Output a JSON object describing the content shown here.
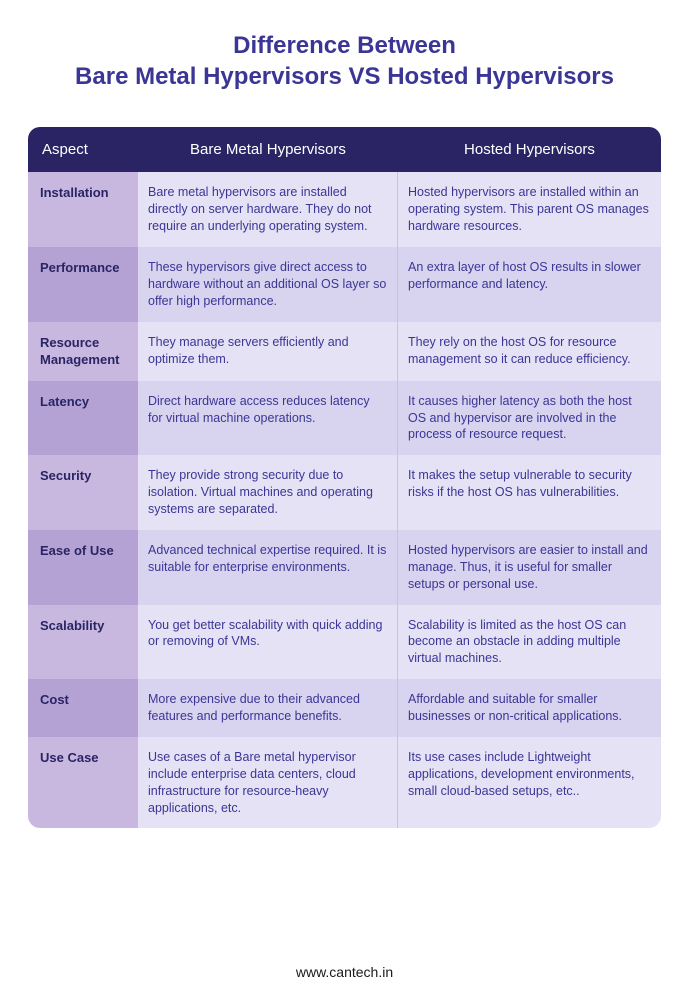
{
  "title_line1": "Difference Between",
  "title_line2": "Bare Metal Hypervisors VS Hosted Hypervisors",
  "columns": [
    "Aspect",
    "Bare Metal Hypervisors",
    "Hosted Hypervisors"
  ],
  "rows": [
    {
      "aspect": "Installation",
      "bare_metal": "Bare metal hypervisors are installed directly on server hardware. They do not require an underlying operating system.",
      "hosted": "Hosted hypervisors are installed within an operating system. This parent OS manages hardware resources."
    },
    {
      "aspect": "Performance",
      "bare_metal": "These hypervisors give direct access to hardware without an additional OS layer so offer high performance.",
      "hosted": "An extra layer of host OS results in slower performance and latency."
    },
    {
      "aspect": "Resource Management",
      "bare_metal": "They manage servers efficiently and optimize them.",
      "hosted": "They rely on the host OS for resource management so it can reduce efficiency."
    },
    {
      "aspect": "Latency",
      "bare_metal": "Direct hardware access reduces latency for virtual machine operations.",
      "hosted": "It causes higher latency as both the host OS and hypervisor are involved in the process of resource request."
    },
    {
      "aspect": "Security",
      "bare_metal": "They provide strong security due to isolation. Virtual machines and operating systems are separated.",
      "hosted": "It makes the setup vulnerable to security risks if the host OS has vulnerabilities."
    },
    {
      "aspect": "Ease of Use",
      "bare_metal": "Advanced technical expertise required. It is suitable for enterprise environments.",
      "hosted": "Hosted hypervisors are easier to install and manage. Thus, it is useful for smaller setups or personal use."
    },
    {
      "aspect": "Scalability",
      "bare_metal": "You get better scalability with quick adding or removing of VMs.",
      "hosted": "Scalability is limited as the host OS can become an obstacle in adding multiple virtual machines."
    },
    {
      "aspect": "Cost",
      "bare_metal": "More expensive due to their advanced features and performance benefits.",
      "hosted": "Affordable and suitable for smaller businesses or non-critical applications."
    },
    {
      "aspect": "Use Case",
      "bare_metal": "Use cases of a Bare metal hypervisor include enterprise data centers, cloud infrastructure for resource-heavy applications, etc.",
      "hosted": "Its use cases include Lightweight applications, development environments, small cloud-based setups, etc.."
    }
  ],
  "footer": "www.cantech.in",
  "styling": {
    "title_color": "#3b3695",
    "title_fontsize": 24,
    "header_bg": "#2a2464",
    "header_text_color": "#ffffff",
    "aspect_col_odd_bg": "#c8b8e0",
    "aspect_col_even_bg": "#b5a2d4",
    "content_odd_bg": "#e5e2f5",
    "content_even_bg": "#d8d3ef",
    "cell_text_color": "#3b3695",
    "aspect_label_color": "#2a2464",
    "border_radius": 12,
    "body_fontsize": 12.5
  }
}
